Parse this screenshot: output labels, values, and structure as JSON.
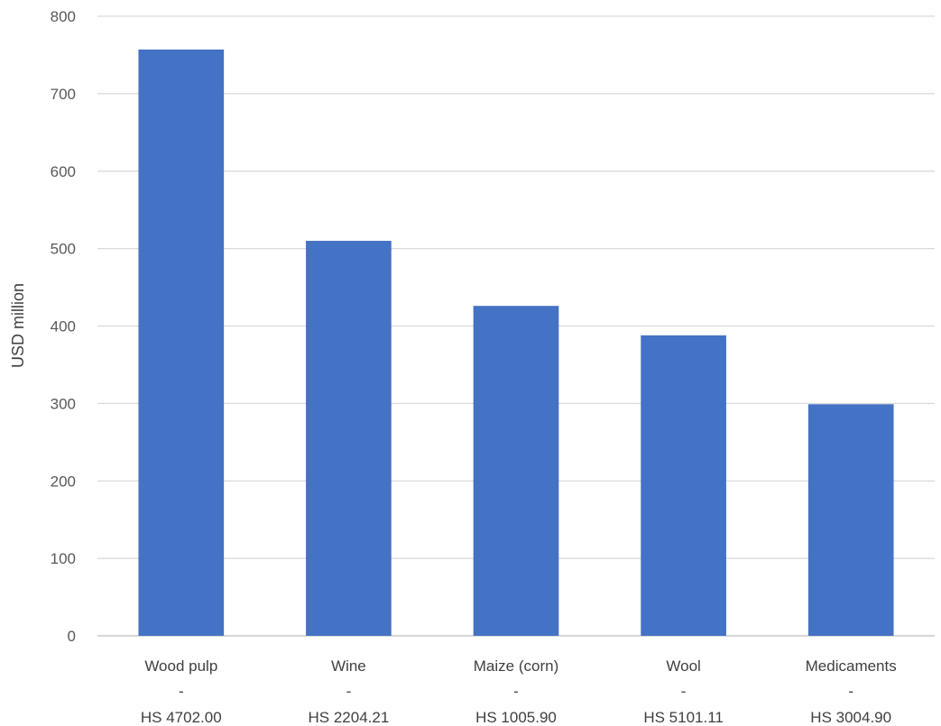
{
  "chart_data": {
    "type": "bar",
    "categories": [
      [
        "Wood pulp",
        "-",
        "HS 4702.00"
      ],
      [
        "Wine",
        "-",
        "HS 2204.21"
      ],
      [
        "Maize (corn)",
        "-",
        "HS 1005.90"
      ],
      [
        "Wool",
        "-",
        "HS 5101.11"
      ],
      [
        "Medicaments",
        "-",
        "HS 3004.90"
      ]
    ],
    "values": [
      757,
      510,
      426,
      388,
      299
    ],
    "title": "",
    "xlabel": "",
    "ylabel": "USD million",
    "ylim": [
      0,
      800
    ],
    "yticks": [
      0,
      100,
      200,
      300,
      400,
      500,
      600,
      700,
      800
    ],
    "grid": true,
    "legend": "none",
    "colors": {
      "bar": "#4472C4",
      "grid": "#D9D9D9"
    }
  }
}
